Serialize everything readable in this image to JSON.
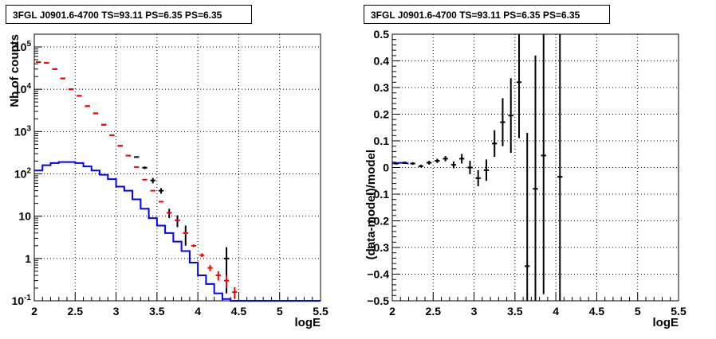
{
  "panels": [
    {
      "title": "3FGL J0901.6-4700 TS=93.11 PS=6.35 PS=6.35"
    },
    {
      "title": "3FGL J0901.6-4700 TS=93.11 PS=6.35 PS=6.35"
    }
  ],
  "chart_data": [
    {
      "type": "scatter",
      "title": "3FGL J0901.6-4700 TS=93.11 PS=6.35 PS=6.35",
      "xlabel": "logE",
      "ylabel": "Nb of counts",
      "xlim": [
        2,
        5.5
      ],
      "ylim": [
        0.1,
        200000
      ],
      "yscale": "log",
      "grid": true,
      "x_ticks": [
        "2",
        "2.5",
        "3",
        "3.5",
        "4",
        "4.5",
        "5",
        "5.5"
      ],
      "y_ticks": [
        "10^{-1}",
        "1",
        "10",
        "10^{2}",
        "10^{3}",
        "10^{4}",
        "10^{5}"
      ],
      "colors": {
        "model": "#ff0000",
        "source": "#0000ff",
        "data": "#000000"
      },
      "series": [
        {
          "role": "model",
          "x": [
            2.05,
            2.15,
            2.25,
            2.35,
            2.45,
            2.55,
            2.65,
            2.75,
            2.85,
            2.95,
            3.05,
            3.15,
            3.25,
            3.35,
            3.45,
            3.55,
            3.65,
            3.75,
            3.85,
            3.95,
            4.05,
            4.15,
            4.25,
            4.35,
            4.45
          ],
          "y": [
            44000,
            42000,
            30000,
            18000,
            10000,
            7000,
            4000,
            2700,
            1450,
            820,
            460,
            270,
            145,
            73,
            40,
            22,
            12,
            8,
            4,
            2,
            1.2,
            0.6,
            0.4,
            0.3,
            0.16
          ],
          "yerr": [
            0,
            0,
            0,
            0,
            0,
            0,
            0,
            0,
            0,
            0,
            0,
            0,
            0,
            0,
            0,
            0.8,
            0.6,
            0.4,
            0.3,
            0.15,
            0.12,
            0.1,
            0.1,
            0.1,
            0.05
          ]
        },
        {
          "role": "source",
          "x": [
            2.05,
            2.15,
            2.25,
            2.35,
            2.45,
            2.55,
            2.65,
            2.75,
            2.85,
            2.95,
            3.05,
            3.15,
            3.25,
            3.35,
            3.45,
            3.55,
            3.65,
            3.75,
            3.85,
            3.95,
            4.05,
            4.15,
            4.25,
            4.35,
            4.45,
            4.55,
            4.65,
            4.75,
            4.85,
            4.95,
            5.05,
            5.15,
            5.25,
            5.35,
            5.45
          ],
          "y": [
            120,
            160,
            180,
            190,
            190,
            180,
            150,
            120,
            95,
            75,
            50,
            40,
            25,
            15,
            9,
            6,
            4,
            2.5,
            1.5,
            0.8,
            0.4,
            0.25,
            0.15,
            0.11,
            0.1,
            0.1,
            0.1,
            0.1,
            0.1,
            0.1,
            0.1,
            0.1,
            0.1,
            0.1,
            0.1
          ]
        },
        {
          "role": "data",
          "x": [
            2.05,
            2.15,
            2.25,
            2.35,
            2.45,
            2.55,
            2.65,
            2.75,
            2.85,
            2.95,
            3.05,
            3.15,
            3.25,
            3.35,
            3.45,
            3.55,
            3.65,
            3.75,
            3.85,
            4.35
          ],
          "y": [
            44000,
            42000,
            30000,
            18000,
            10000,
            7000,
            4000,
            2700,
            1450,
            820,
            460,
            270,
            250,
            140,
            70,
            40,
            12,
            8,
            4,
            1
          ],
          "yerr": [
            0,
            0,
            0,
            0,
            0,
            0,
            0,
            0,
            0,
            0,
            0,
            0,
            0,
            10,
            10,
            6,
            3,
            2.5,
            2,
            0.85
          ]
        }
      ]
    },
    {
      "type": "scatter",
      "title": "3FGL J0901.6-4700 TS=93.11 PS=6.35 PS=6.35",
      "xlabel": "logE",
      "ylabel": "(data-model)/model",
      "xlim": [
        2,
        5.5
      ],
      "ylim": [
        -0.5,
        0.5
      ],
      "grid": true,
      "x_ticks": [
        "2",
        "2.5",
        "3",
        "3.5",
        "4",
        "4.5",
        "5",
        "5.5"
      ],
      "y_ticks": [
        "−0.5",
        "−0.4",
        "−0.3",
        "−0.2",
        "−0.1",
        "0",
        "0.1",
        "0.2",
        "0.3",
        "0.4",
        "0.5"
      ],
      "colors": {
        "fit": "#0000ff",
        "data": "#000000"
      },
      "series": [
        {
          "role": "fit",
          "x": [
            2.0,
            2.1,
            2.2
          ],
          "y": [
            0.015,
            0.018,
            0.015
          ]
        },
        {
          "role": "data",
          "x": [
            2.05,
            2.15,
            2.25,
            2.35,
            2.45,
            2.55,
            2.65,
            2.75,
            2.85,
            2.95,
            3.05,
            3.15,
            3.25,
            3.35,
            3.45,
            3.55,
            3.65,
            3.75,
            3.85,
            4.05
          ],
          "y": [
            0.015,
            0.018,
            0.015,
            0.005,
            0.018,
            0.025,
            0.033,
            0.01,
            0.033,
            0.0,
            -0.04,
            -0.01,
            0.09,
            0.17,
            0.195,
            0.32,
            -0.37,
            -0.08,
            0.045,
            -0.035
          ],
          "yerr": [
            0.004,
            0.004,
            0.005,
            0.005,
            0.007,
            0.008,
            0.01,
            0.013,
            0.018,
            0.025,
            0.03,
            0.04,
            0.05,
            0.09,
            0.14,
            0.21,
            0.5,
            0.5,
            0.52,
            0.6
          ]
        }
      ]
    }
  ]
}
